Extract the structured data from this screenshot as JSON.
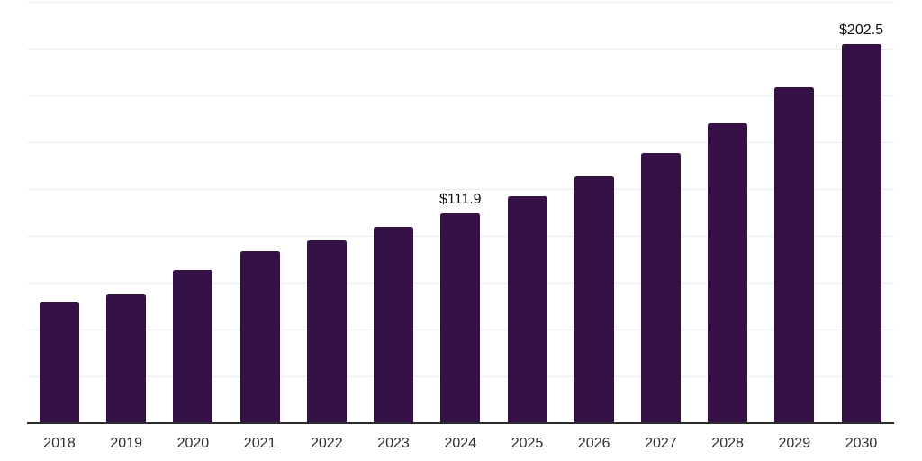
{
  "chart_data": {
    "type": "bar",
    "title": "",
    "xlabel": "",
    "ylabel": "",
    "categories": [
      "2018",
      "2019",
      "2020",
      "2021",
      "2022",
      "2023",
      "2024",
      "2025",
      "2026",
      "2027",
      "2028",
      "2029",
      "2030"
    ],
    "values": [
      64.9,
      69.0,
      81.9,
      91.8,
      97.7,
      104.7,
      111.9,
      121.0,
      131.9,
      144.3,
      160.3,
      179.5,
      202.5
    ],
    "data_labels": {
      "2024": "$111.9",
      "2030": "$202.5"
    },
    "ylim": [
      0,
      225
    ],
    "gridline_step": 25,
    "grid": true,
    "legend_position": "none",
    "colors": {
      "bar": "#351148",
      "axis_line": "#2b2b2b",
      "gridline": "#ebebeb",
      "tick_label": "#2e2e2e",
      "data_label": "#0d0d0d",
      "background": "#ffffff"
    }
  }
}
